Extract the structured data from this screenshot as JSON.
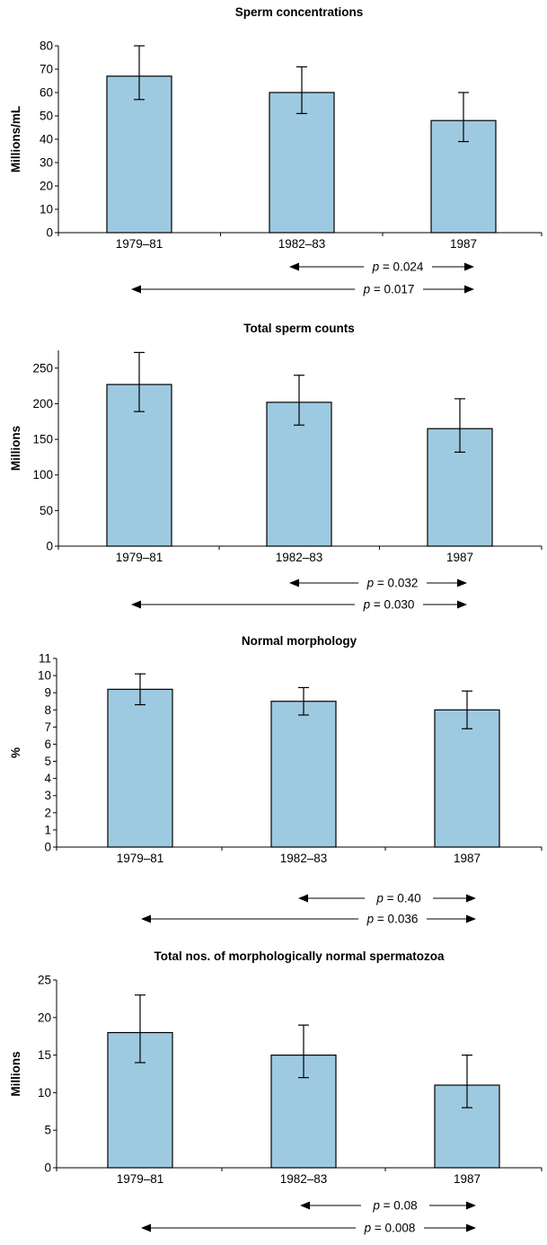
{
  "colors": {
    "bar_fill": "#9ecae1",
    "stroke": "#000000",
    "background": "#ffffff"
  },
  "chart_data": [
    {
      "type": "bar",
      "title": "Sperm concentrations",
      "ylabel": "Millions/mL",
      "xlabel": "",
      "categories": [
        "1979–81",
        "1982–83",
        "1987"
      ],
      "values": [
        67,
        60,
        48
      ],
      "error_low": [
        57,
        51,
        39
      ],
      "error_high": [
        80,
        71,
        60
      ],
      "ylim": [
        0,
        80
      ],
      "yticks": [
        0,
        10,
        20,
        30,
        40,
        50,
        60,
        70,
        80
      ],
      "grid": false,
      "comparisons": [
        {
          "from": "1982–83",
          "to": "1987",
          "p_label": "p",
          "p_value": "= 0.024"
        },
        {
          "from": "1979–81",
          "to": "1987",
          "p_label": "p",
          "p_value": "= 0.017"
        }
      ]
    },
    {
      "type": "bar",
      "title": "Total sperm counts",
      "ylabel": "Millions",
      "xlabel": "",
      "categories": [
        "1979–81",
        "1982–83",
        "1987"
      ],
      "values": [
        227,
        202,
        165
      ],
      "error_low": [
        189,
        170,
        132
      ],
      "error_high": [
        272,
        240,
        207
      ],
      "ylim": [
        0,
        275
      ],
      "yticks": [
        0,
        50,
        100,
        150,
        200,
        250
      ],
      "grid": false,
      "comparisons": [
        {
          "from": "1982–83",
          "to": "1987",
          "p_label": "p",
          "p_value": "= 0.032"
        },
        {
          "from": "1979–81",
          "to": "1987",
          "p_label": "p",
          "p_value": "= 0.030"
        }
      ]
    },
    {
      "type": "bar",
      "title": "Normal morphology",
      "ylabel": "%",
      "xlabel": "",
      "categories": [
        "1979–81",
        "1982–83",
        "1987"
      ],
      "values": [
        9.2,
        8.5,
        8.0
      ],
      "error_low": [
        8.3,
        7.7,
        6.9
      ],
      "error_high": [
        10.1,
        9.3,
        9.1
      ],
      "ylim": [
        0,
        11
      ],
      "yticks": [
        0,
        1,
        2,
        3,
        4,
        5,
        6,
        7,
        8,
        9,
        10,
        11
      ],
      "grid": false,
      "comparisons": [
        {
          "from": "1982–83",
          "to": "1987",
          "p_label": "p",
          "p_value": "= 0.40"
        },
        {
          "from": "1979–81",
          "to": "1987",
          "p_label": "p",
          "p_value": "= 0.036"
        }
      ]
    },
    {
      "type": "bar",
      "title": "Total nos. of morphologically normal spermatozoa",
      "ylabel": "Millions",
      "xlabel": "",
      "categories": [
        "1979–81",
        "1982–83",
        "1987"
      ],
      "values": [
        18,
        15,
        11
      ],
      "error_low": [
        14,
        12,
        8
      ],
      "error_high": [
        23,
        19,
        15
      ],
      "ylim": [
        0,
        25
      ],
      "yticks": [
        0,
        5,
        10,
        15,
        20,
        25
      ],
      "grid": false,
      "comparisons": [
        {
          "from": "1982–83",
          "to": "1987",
          "p_label": "p",
          "p_value": "= 0.08"
        },
        {
          "from": "1979–81",
          "to": "1987",
          "p_label": "p",
          "p_value": "= 0.008"
        }
      ]
    }
  ]
}
